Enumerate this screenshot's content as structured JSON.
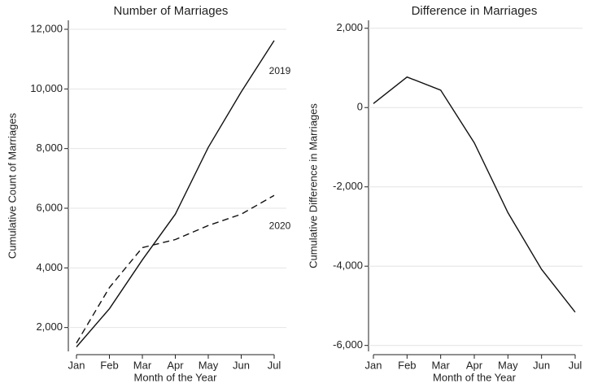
{
  "chart_data": [
    {
      "type": "line",
      "title": "Number of Marriages",
      "xlabel": "Month of the Year",
      "ylabel": "Cumulative Count of Marriages",
      "categories": [
        "Jan",
        "Feb",
        "Mar",
        "Apr",
        "May",
        "Jun",
        "Jul"
      ],
      "series": [
        {
          "name": "2019",
          "color": "#111111",
          "dash": "solid",
          "values": [
            1350,
            2630,
            4270,
            5800,
            8040,
            9900,
            11620
          ]
        },
        {
          "name": "2020",
          "color": "#111111",
          "dash": "dashed",
          "values": [
            1480,
            3340,
            4680,
            4950,
            5420,
            5800,
            6430
          ]
        }
      ],
      "ylim": [
        1200,
        12300
      ],
      "yticks": [
        {
          "value": 2000,
          "label": "2,000"
        },
        {
          "value": 4000,
          "label": "4,000"
        },
        {
          "value": 6000,
          "label": "6,000"
        },
        {
          "value": 8000,
          "label": "8,000"
        },
        {
          "value": 10000,
          "label": "10,000"
        },
        {
          "value": 12000,
          "label": "12,000"
        }
      ],
      "grid": true
    },
    {
      "type": "line",
      "title": "Difference in Marriages",
      "xlabel": "Month of the Year",
      "ylabel": "Cumulative Difference in Marriages",
      "categories": [
        "Jan",
        "Feb",
        "Mar",
        "Apr",
        "May",
        "Jun",
        "Jul"
      ],
      "values": [
        100,
        770,
        440,
        -890,
        -2650,
        -4080,
        -5160
      ],
      "color": "#111111",
      "ylim": [
        -6150,
        2200
      ],
      "yticks": [
        {
          "value": -6000,
          "label": "-6,000"
        },
        {
          "value": -4000,
          "label": "-4,000"
        },
        {
          "value": -2000,
          "label": "-2,000"
        },
        0,
        {
          "value": 2000,
          "label": "2,000"
        }
      ],
      "grid": true
    }
  ]
}
